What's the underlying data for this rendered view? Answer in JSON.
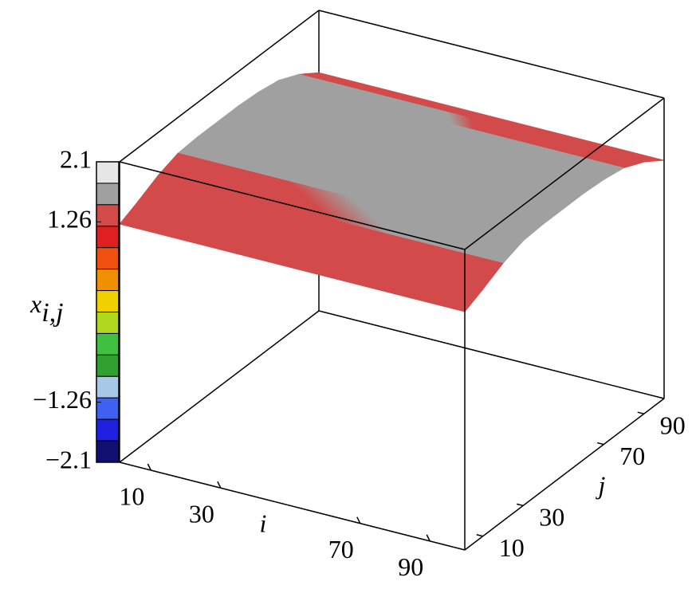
{
  "chart_data": {
    "type": "surface",
    "colorbar": {
      "label": {
        "base": "x",
        "sub": "i,j"
      },
      "zlim": [
        -2.1,
        2.1
      ],
      "ticks": [
        2.1,
        1.26,
        {
          "value": -1.26,
          "label": "−1.26"
        },
        {
          "value": -2.1,
          "label": "−2.1"
        }
      ],
      "colors": [
        "#e6e6e6",
        "#a0a0a0",
        "#d24a4a",
        "#e02020",
        "#f05010",
        "#f09000",
        "#f0d000",
        "#b0d820",
        "#40c040",
        "#30a030",
        "#a8c8e8",
        "#4060f0",
        "#2020e0",
        "#101070"
      ]
    },
    "xaxis": {
      "label": "i",
      "lim": [
        1,
        100
      ],
      "ticks": [
        10,
        30,
        70,
        90
      ]
    },
    "yaxis": {
      "label": "j",
      "lim": [
        1,
        100
      ],
      "ticks": [
        10,
        30,
        70,
        90
      ]
    },
    "surface": {
      "x": [
        1,
        10,
        20,
        30,
        40,
        50,
        60,
        70,
        80,
        90,
        100
      ],
      "values": [
        1.23,
        1.35,
        1.5,
        1.6,
        1.62,
        1.62,
        1.62,
        1.6,
        1.55,
        1.42,
        1.23
      ]
    }
  }
}
